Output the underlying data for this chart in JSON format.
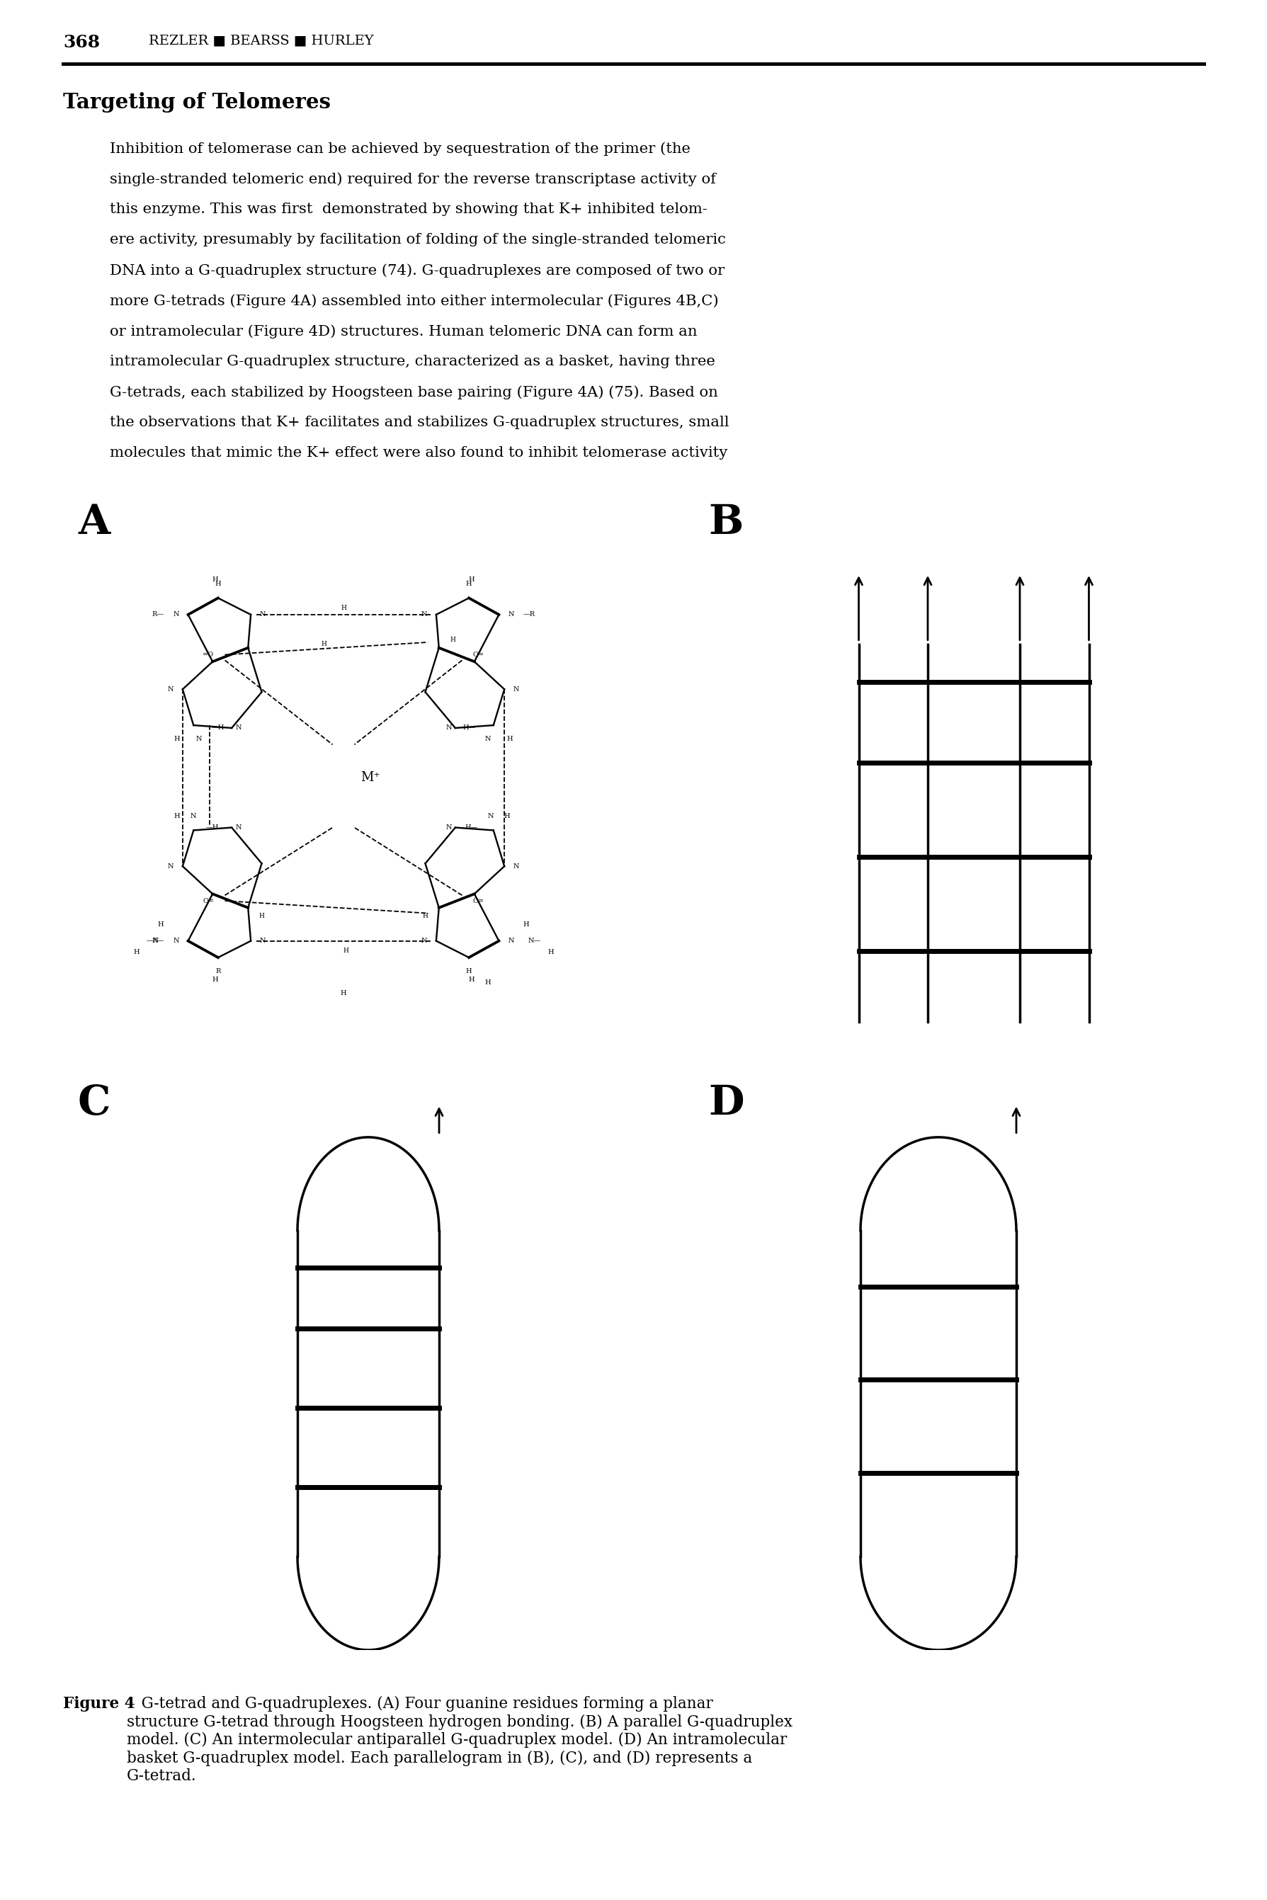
{
  "page_number": "368",
  "header_text": "REZLER ■ BEARSS ■ HURLEY",
  "section_title": "Targeting of Telomeres",
  "body_lines": [
    "Inhibition of telomerase can be achieved by sequestration of the primer (the",
    "single-stranded telomeric end) required for the reverse transcriptase activity of",
    "this enzyme. This was first  demonstrated by showing that K+ inhibited telom-",
    "ere activity, presumably by facilitation of folding of the single-stranded telomeric",
    "DNA into a G-quadruplex structure (74). G-quadruplexes are composed of two or",
    "more G-tetrads (Figure 4A) assembled into either intermolecular (Figures 4B,C)",
    "or intramolecular (Figure 4D) structures. Human telomeric DNA can form an",
    "intramolecular G-quadruplex structure, characterized as a basket, having three",
    "G-tetrads, each stabilized by Hoogsteen base pairing (Figure 4A) (75). Based on",
    "the observations that K+ facilitates and stabilizes G-quadruplex structures, small",
    "molecules that mimic the K+ effect were also found to inhibit telomerase activity"
  ],
  "caption_bold": "Figure 4",
  "caption_rest": "   G-tetrad and G-quadruplexes. (A) Four guanine residues forming a planar\nstructure G-tetrad through Hoogsteen hydrogen bonding. (B) A parallel G-quadruplex\nmodel. (C) An intermolecular antiparallel G-quadruplex model. (D) An intramolecular\nbasket G-quadruplex model. Each parallelogram in (B), (C), and (D) represents a\nG-tetrad.",
  "background_color": "#ffffff"
}
